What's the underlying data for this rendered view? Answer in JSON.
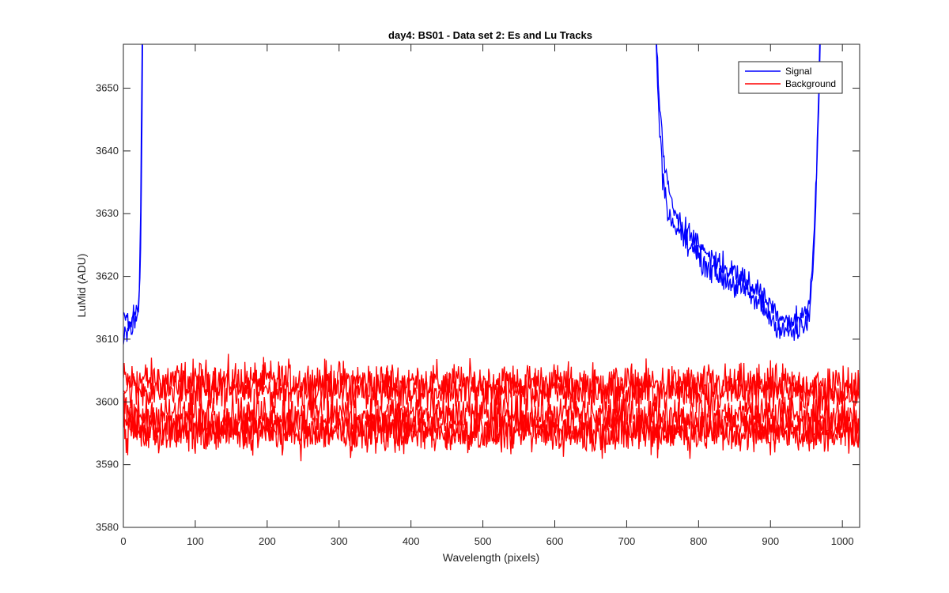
{
  "chart_data": {
    "type": "line",
    "title": "day4: BS01 - Data set 2: Es and Lu Tracks",
    "xlabel": "Wavelength (pixels)",
    "ylabel": "LuMid (ADU)",
    "xlim": [
      0,
      1024
    ],
    "ylim": [
      3580,
      3657
    ],
    "xticks": [
      0,
      100,
      200,
      300,
      400,
      500,
      600,
      700,
      800,
      900,
      1000
    ],
    "yticks": [
      3580,
      3590,
      3600,
      3610,
      3620,
      3630,
      3640,
      3650
    ],
    "grid": false,
    "legend_position": "top-right",
    "series": [
      {
        "name": "Signal",
        "color": "#0000ff",
        "tracks": [
          {
            "x": [
              0,
              5,
              10,
              15,
              20,
              22,
              24,
              26,
              28
            ],
            "y": [
              3611,
              3612,
              3611,
              3613,
              3613,
              3616,
              3625,
              3645,
              3680
            ]
          },
          {
            "x": [
              0,
              5,
              10,
              15,
              20,
              22,
              24,
              26,
              28
            ],
            "y": [
              3613,
              3613,
              3612,
              3614,
              3615,
              3618,
              3630,
              3655,
              3690
            ]
          },
          {
            "x": [
              740,
              745,
              750,
              760,
              780,
              800,
              830,
              860,
              890,
              910,
              930,
              950,
              955,
              960,
              965,
              970
            ],
            "y": [
              3660,
              3650,
              3640,
              3632,
              3628,
              3625,
              3622,
              3620,
              3617,
              3614,
              3613,
              3614,
              3617,
              3625,
              3640,
              3665
            ]
          },
          {
            "x": [
              740,
              745,
              750,
              760,
              780,
              800,
              830,
              860,
              890,
              910,
              930,
              950,
              955,
              960,
              965,
              970
            ],
            "y": [
              3658,
              3646,
              3636,
              3629,
              3626,
              3623,
              3620,
              3618,
              3615,
              3612,
              3611,
              3612,
              3615,
              3622,
              3638,
              3662
            ]
          }
        ]
      },
      {
        "name": "Background",
        "color": "#ff0000",
        "tracks": [
          {
            "x": [
              0,
              1024
            ],
            "y": [
              3603.5,
              3602.5
            ]
          },
          {
            "x": [
              0,
              1024
            ],
            "y": [
              3602,
              3601.5
            ]
          },
          {
            "x": [
              0,
              1024
            ],
            "y": [
              3598,
              3598
            ]
          },
          {
            "x": [
              0,
              1024
            ],
            "y": [
              3596,
              3596
            ]
          },
          {
            "x": [
              0,
              1024
            ],
            "y": [
              3595,
              3595
            ]
          }
        ]
      }
    ]
  }
}
